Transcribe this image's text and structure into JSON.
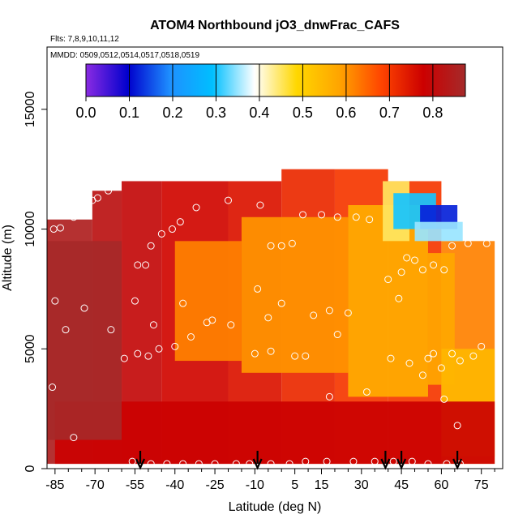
{
  "chart_data": {
    "type": "heatmap",
    "title": "ATOM4 Northbound jO3_dnwFrac_CAFS",
    "subtitle_flights": "Flts: 7,8,9,10,11,12",
    "subtitle_dates": "MMDD: 0509,0512,0514,0517,0518,0519",
    "xlabel": "Latitude (deg N)",
    "ylabel": "Altitude (m)",
    "xlim": [
      -88,
      83
    ],
    "ylim": [
      0,
      17600
    ],
    "x_ticks": [
      -85,
      -70,
      -55,
      -40,
      -25,
      -10,
      5,
      15,
      30,
      45,
      60,
      75
    ],
    "x_ticks_minor": [
      -80,
      -75,
      -65,
      -60,
      -50,
      -45,
      -35,
      -30,
      -20,
      -15,
      -5,
      0,
      10,
      20,
      25,
      35,
      40,
      50,
      55,
      65,
      70,
      80
    ],
    "y_ticks": [
      0,
      5000,
      10000,
      15000
    ],
    "colorbar": {
      "range": [
        0.0,
        0.875
      ],
      "ticks": [
        "0.0",
        "0.1",
        "0.2",
        "0.3",
        "0.4",
        "0.5",
        "0.6",
        "0.7",
        "0.8"
      ],
      "tick_values": [
        0.0,
        0.1,
        0.2,
        0.3,
        0.4,
        0.5,
        0.6,
        0.7,
        0.8
      ],
      "colors": [
        "#8a2be2",
        "#0000cd",
        "#1e90ff",
        "#00bfff",
        "#ffffff",
        "#ffd700",
        "#ffa500",
        "#ff4500",
        "#cc0000",
        "#a52a2a"
      ]
    },
    "arrow_latitudes": [
      -53,
      -9,
      39,
      45,
      66
    ],
    "cells": [
      {
        "x0": -88,
        "x1": -71,
        "y0": 200,
        "y1": 10400,
        "v": 0.85
      },
      {
        "x0": -71,
        "x1": -60,
        "y0": 200,
        "y1": 11600,
        "v": 0.82
      },
      {
        "x0": -60,
        "x1": -45,
        "y0": 200,
        "y1": 12000,
        "v": 0.8
      },
      {
        "x0": -45,
        "x1": -20,
        "y0": 200,
        "y1": 12000,
        "v": 0.77
      },
      {
        "x0": -20,
        "x1": 0,
        "y0": 200,
        "y1": 12000,
        "v": 0.75
      },
      {
        "x0": 0,
        "x1": 20,
        "y0": 200,
        "y1": 12500,
        "v": 0.72
      },
      {
        "x0": 20,
        "x1": 40,
        "y0": 200,
        "y1": 12500,
        "v": 0.7
      },
      {
        "x0": 40,
        "x1": 60,
        "y0": 200,
        "y1": 12000,
        "v": 0.7
      },
      {
        "x0": 60,
        "x1": 80,
        "y0": 200,
        "y1": 9500,
        "v": 0.62
      },
      {
        "x0": -40,
        "x1": -15,
        "y0": 4500,
        "y1": 9500,
        "v": 0.62
      },
      {
        "x0": -15,
        "x1": 25,
        "y0": 4000,
        "y1": 10500,
        "v": 0.6
      },
      {
        "x0": 25,
        "x1": 55,
        "y0": 3000,
        "y1": 11000,
        "v": 0.57
      },
      {
        "x0": 55,
        "x1": 65,
        "y0": 3500,
        "y1": 9000,
        "v": 0.58
      },
      {
        "x0": 60,
        "x1": 80,
        "y0": 500,
        "y1": 5000,
        "v": 0.55
      },
      {
        "x0": 38,
        "x1": 48,
        "y0": 9500,
        "y1": 12000,
        "v": 0.45
      },
      {
        "x0": 42,
        "x1": 58,
        "y0": 10000,
        "y1": 11500,
        "v": 0.3
      },
      {
        "x0": 52,
        "x1": 66,
        "y0": 10000,
        "y1": 11000,
        "v": 0.12
      },
      {
        "x0": 50,
        "x1": 68,
        "y0": 9500,
        "y1": 10300,
        "v": 0.35
      },
      {
        "x0": -85,
        "x1": 80,
        "y0": 200,
        "y1": 2800,
        "v": 0.78
      },
      {
        "x0": -88,
        "x1": -60,
        "y0": 1200,
        "y1": 9500,
        "v": 0.87
      }
    ],
    "points": [
      [
        -85.5,
        10000
      ],
      [
        -83,
        10050
      ],
      [
        -78,
        10500
      ],
      [
        -75,
        10700
      ],
      [
        -71,
        11200
      ],
      [
        -69,
        11300
      ],
      [
        -65,
        11600
      ],
      [
        -54,
        8500
      ],
      [
        -51,
        8500
      ],
      [
        -49,
        9300
      ],
      [
        -45,
        9800
      ],
      [
        -41,
        10000
      ],
      [
        -38,
        10300
      ],
      [
        -32,
        10900
      ],
      [
        -20,
        11200
      ],
      [
        -8,
        11000
      ],
      [
        -4,
        9300
      ],
      [
        0,
        9300
      ],
      [
        4,
        9400
      ],
      [
        8,
        10600
      ],
      [
        15,
        10600
      ],
      [
        21,
        10500
      ],
      [
        28,
        10500
      ],
      [
        33,
        10400
      ],
      [
        -55,
        7000
      ],
      [
        -48,
        6000
      ],
      [
        -37,
        6900
      ],
      [
        -26,
        6200
      ],
      [
        -19,
        6000
      ],
      [
        -9,
        7500
      ],
      [
        -5,
        6300
      ],
      [
        0,
        6900
      ],
      [
        12,
        6400
      ],
      [
        18,
        6600
      ],
      [
        25,
        6500
      ],
      [
        -54,
        4800
      ],
      [
        -50,
        4700
      ],
      [
        -46,
        5000
      ],
      [
        -40,
        5100
      ],
      [
        -34,
        5500
      ],
      [
        -28,
        6100
      ],
      [
        -10,
        4800
      ],
      [
        -4,
        4900
      ],
      [
        5,
        4700
      ],
      [
        9,
        4700
      ],
      [
        21,
        5600
      ],
      [
        55,
        4600
      ],
      [
        57,
        4800
      ],
      [
        60,
        4200
      ],
      [
        64,
        4800
      ],
      [
        67,
        4500
      ],
      [
        72,
        4700
      ],
      [
        75,
        5100
      ],
      [
        -85,
        7000
      ],
      [
        -81,
        5800
      ],
      [
        -74,
        6700
      ],
      [
        -64,
        5800
      ],
      [
        -59,
        4600
      ],
      [
        45,
        8200
      ],
      [
        47,
        8800
      ],
      [
        50,
        8700
      ],
      [
        53,
        8300
      ],
      [
        57,
        8500
      ],
      [
        61,
        8300
      ],
      [
        64,
        9300
      ],
      [
        70,
        9400
      ],
      [
        77,
        9400
      ],
      [
        -86,
        3400
      ],
      [
        -78,
        1300
      ],
      [
        -56,
        300
      ],
      [
        -49,
        200
      ],
      [
        -43,
        200
      ],
      [
        -37,
        200
      ],
      [
        -31,
        200
      ],
      [
        -25,
        200
      ],
      [
        -17,
        200
      ],
      [
        -12,
        200
      ],
      [
        -4,
        200
      ],
      [
        3,
        200
      ],
      [
        9,
        300
      ],
      [
        17,
        300
      ],
      [
        27,
        300
      ],
      [
        35,
        300
      ],
      [
        42,
        300
      ],
      [
        49,
        300
      ],
      [
        55,
        200
      ],
      [
        62,
        200
      ],
      [
        67,
        200
      ],
      [
        40,
        7900
      ],
      [
        44,
        7100
      ],
      [
        32,
        3200
      ],
      [
        18,
        3000
      ],
      [
        41,
        4600
      ],
      [
        48,
        4400
      ],
      [
        53,
        3900
      ],
      [
        61,
        2900
      ],
      [
        66,
        1800
      ]
    ]
  }
}
